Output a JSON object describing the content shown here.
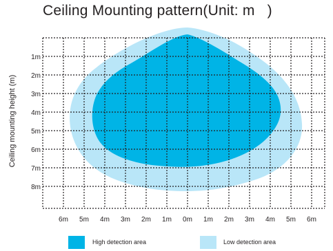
{
  "title": "Ceiling Mounting pattern(Unit: m   )",
  "y_axis_label": "Ceiling mounting height (m)",
  "y_ticks": [
    "1m",
    "2m",
    "3m",
    "4m",
    "5m",
    "6m",
    "7m",
    "8m"
  ],
  "x_ticks": [
    "6m",
    "5m",
    "4m",
    "3m",
    "2m",
    "1m",
    "0m",
    "1m",
    "2m",
    "3m",
    "4m",
    "5m",
    "6m"
  ],
  "legend": {
    "high": {
      "label": "High detection area",
      "color": "#00b4e6"
    },
    "low": {
      "label": "Low detection area",
      "color": "#b9e6f8"
    }
  }
}
